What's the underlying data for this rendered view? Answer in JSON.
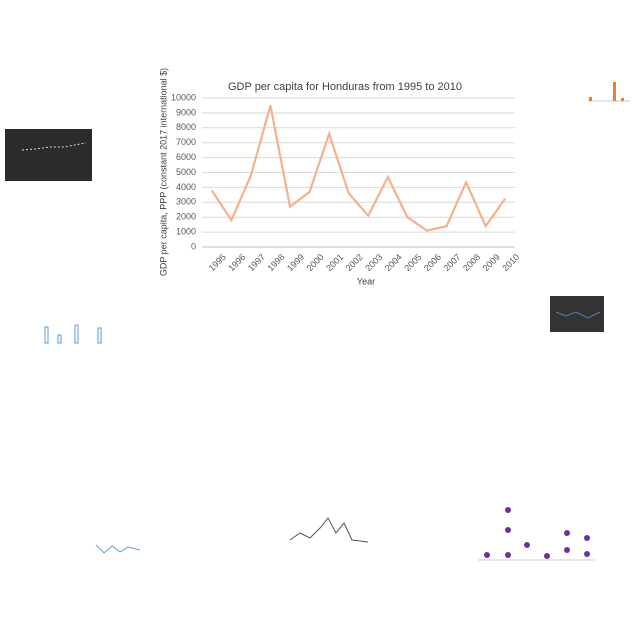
{
  "chart_data": {
    "type": "line",
    "title": "GDP per capita for Honduras from 1995 to 2010",
    "x_label": "Year",
    "y_label": "GDP per capita, PPP (constant 2017 international $)",
    "categories": [
      "1995",
      "1996",
      "1997",
      "1998",
      "1999",
      "2000",
      "2001",
      "2002",
      "2003",
      "2004",
      "2005",
      "2006",
      "2007",
      "2008",
      "2009",
      "2010"
    ],
    "values": [
      3800,
      1800,
      4800,
      9500,
      2700,
      3700,
      7600,
      3600,
      2100,
      4700,
      2000,
      1100,
      1400,
      4350,
      1400,
      3250
    ],
    "color": "#f4b08f",
    "ylim": [
      0,
      10000
    ],
    "yticks": [
      0,
      1000,
      2000,
      3000,
      4000,
      5000,
      6000,
      7000,
      8000,
      9000,
      10000
    ],
    "grid": true
  }
}
